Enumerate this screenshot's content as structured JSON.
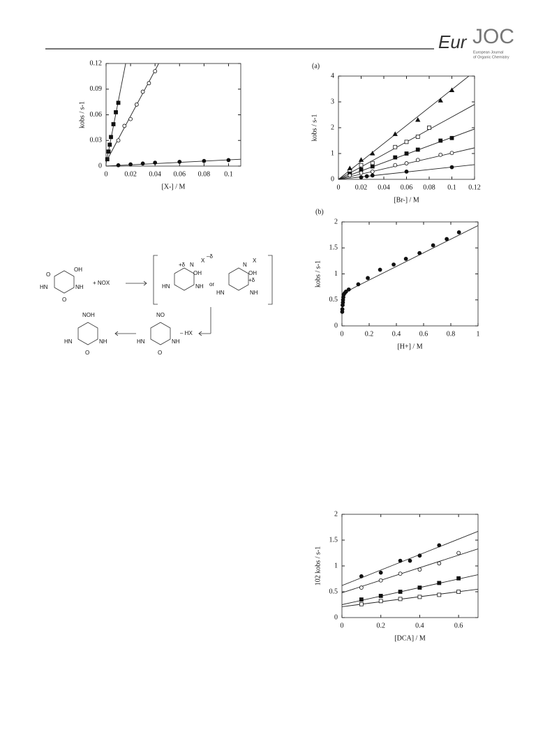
{
  "header": {
    "logo_a": "Eur",
    "logo_b": "JOC",
    "logo_lines": [
      "European Journal",
      "of Organic Chemistry"
    ]
  },
  "scheme": {
    "plus_nox": "+   NOX",
    "or": "or",
    "minus_hx": "– HX",
    "oh": "OH",
    "o": "O",
    "nh": "NH",
    "hn": "HN",
    "no": "NO",
    "noh": "NOH",
    "x_delta": "X",
    "delta_minus": "–δ",
    "delta_plus": "+δ",
    "n": "N"
  },
  "chart_data": [
    {
      "type": "scatter",
      "xlabel": "[X-] / M",
      "ylabel": "kobs / s-1",
      "xlim": [
        0,
        0.11
      ],
      "ylim": [
        0,
        0.12
      ],
      "xticks": [
        0,
        0.02,
        0.04,
        0.06,
        0.08,
        0.1
      ],
      "yticks": [
        0,
        0.03,
        0.06,
        0.09,
        0.12
      ],
      "series": [
        {
          "marker": "square",
          "filled": true,
          "x": [
            0.001,
            0.002,
            0.003,
            0.004,
            0.006,
            0.008,
            0.01
          ],
          "values": [
            0.008,
            0.017,
            0.025,
            0.034,
            0.049,
            0.063,
            0.074
          ],
          "fit_x": [
            0,
            0.016
          ],
          "fit_y": [
            0.003,
            0.12
          ]
        },
        {
          "marker": "circle",
          "filled": false,
          "x": [
            0.01,
            0.015,
            0.02,
            0.025,
            0.03,
            0.035,
            0.04
          ],
          "values": [
            0.03,
            0.047,
            0.055,
            0.072,
            0.087,
            0.097,
            0.111
          ],
          "fit_x": [
            0,
            0.043
          ],
          "fit_y": [
            0.005,
            0.12
          ]
        },
        {
          "marker": "circle",
          "filled": true,
          "x": [
            0.01,
            0.02,
            0.03,
            0.04,
            0.06,
            0.08,
            0.1
          ],
          "values": [
            0.001,
            0.002,
            0.003,
            0.004,
            0.005,
            0.006,
            0.007
          ],
          "fit_x": [
            0,
            0.11
          ],
          "fit_y": [
            0,
            0.008
          ]
        }
      ]
    },
    {
      "type": "scatter",
      "panel_label": "(a)",
      "xlabel": "[Br-] / M",
      "ylabel": "kobs / s-1",
      "xlim": [
        0,
        0.12
      ],
      "ylim": [
        0,
        4
      ],
      "xticks": [
        0,
        0.02,
        0.04,
        0.06,
        0.08,
        0.1,
        0.12
      ],
      "yticks": [
        0,
        1,
        2,
        3,
        4
      ],
      "series": [
        {
          "marker": "triangle",
          "filled": true,
          "x": [
            0.01,
            0.02,
            0.03,
            0.05,
            0.07,
            0.09,
            0.1
          ],
          "values": [
            0.42,
            0.75,
            1.0,
            1.75,
            2.3,
            3.05,
            3.45
          ],
          "fit_x": [
            0,
            0.115
          ],
          "fit_y": [
            0,
            4
          ]
        },
        {
          "marker": "square",
          "filled": false,
          "x": [
            0.01,
            0.02,
            0.03,
            0.05,
            0.06,
            0.07,
            0.08
          ],
          "values": [
            0.3,
            0.55,
            0.63,
            1.25,
            1.45,
            1.65,
            2.0
          ],
          "fit_x": [
            0,
            0.12
          ],
          "fit_y": [
            0,
            2.9
          ]
        },
        {
          "marker": "square",
          "filled": true,
          "x": [
            0.01,
            0.02,
            0.03,
            0.05,
            0.06,
            0.07,
            0.09,
            0.1
          ],
          "values": [
            0.22,
            0.38,
            0.5,
            0.85,
            1.0,
            1.15,
            1.5,
            1.6
          ],
          "fit_x": [
            0,
            0.12
          ],
          "fit_y": [
            0,
            1.95
          ]
        },
        {
          "marker": "circle",
          "filled": false,
          "x": [
            0.01,
            0.02,
            0.03,
            0.05,
            0.06,
            0.07,
            0.09,
            0.1
          ],
          "values": [
            0.15,
            0.25,
            0.3,
            0.55,
            0.62,
            0.75,
            0.95,
            1.02
          ],
          "fit_x": [
            0,
            0.12
          ],
          "fit_y": [
            0,
            1.22
          ]
        },
        {
          "marker": "circle",
          "filled": true,
          "x": [
            0.02,
            0.025,
            0.03,
            0.06,
            0.1
          ],
          "values": [
            0.08,
            0.12,
            0.15,
            0.3,
            0.47
          ],
          "fit_x": [
            0,
            0.12
          ],
          "fit_y": [
            0,
            0.57
          ]
        }
      ]
    },
    {
      "type": "scatter",
      "panel_label": "(b)",
      "xlabel": "[H+] / M",
      "ylabel": "kobs / s-1",
      "xlim": [
        0,
        1
      ],
      "ylim": [
        0,
        2
      ],
      "xticks": [
        0,
        0.2,
        0.4,
        0.6,
        0.8,
        1
      ],
      "yticks": [
        0,
        0.5,
        1,
        1.5,
        2
      ],
      "series": [
        {
          "marker": "circle",
          "filled": true,
          "x": [
            0.002,
            0.003,
            0.005,
            0.007,
            0.008,
            0.01,
            0.012,
            0.02,
            0.03,
            0.05,
            0.12,
            0.19,
            0.28,
            0.38,
            0.47,
            0.57,
            0.67,
            0.77,
            0.86
          ],
          "values": [
            0.27,
            0.32,
            0.4,
            0.45,
            0.5,
            0.55,
            0.6,
            0.63,
            0.66,
            0.7,
            0.8,
            0.92,
            1.08,
            1.18,
            1.29,
            1.4,
            1.55,
            1.67,
            1.8
          ],
          "fit_x": [
            0,
            0.005,
            0.01,
            0.02,
            0.05,
            0.1,
            1
          ],
          "fit_y": [
            0.25,
            0.45,
            0.57,
            0.63,
            0.68,
            0.75,
            1.93
          ]
        }
      ]
    },
    {
      "type": "scatter",
      "xlabel": "[DCA] / M",
      "ylabel": "102 kobs / s-1",
      "xlim": [
        0,
        0.7
      ],
      "ylim": [
        0,
        2
      ],
      "xticks": [
        0,
        0.2,
        0.4,
        0.6
      ],
      "yticks": [
        0,
        0.5,
        1,
        1.5,
        2
      ],
      "series": [
        {
          "marker": "circle",
          "filled": true,
          "x": [
            0.1,
            0.2,
            0.3,
            0.35,
            0.4,
            0.5
          ],
          "values": [
            0.8,
            0.87,
            1.1,
            1.1,
            1.2,
            1.4
          ],
          "fit_x": [
            0,
            0.7
          ],
          "fit_y": [
            0.62,
            1.67
          ]
        },
        {
          "marker": "circle",
          "filled": false,
          "x": [
            0.1,
            0.2,
            0.3,
            0.4,
            0.5,
            0.6
          ],
          "values": [
            0.58,
            0.72,
            0.85,
            0.93,
            1.05,
            1.25
          ],
          "fit_x": [
            0,
            0.7
          ],
          "fit_y": [
            0.48,
            1.33
          ]
        },
        {
          "marker": "square",
          "filled": true,
          "x": [
            0.1,
            0.2,
            0.3,
            0.4,
            0.5,
            0.6
          ],
          "values": [
            0.35,
            0.42,
            0.5,
            0.58,
            0.67,
            0.76
          ],
          "fit_x": [
            0,
            0.7
          ],
          "fit_y": [
            0.25,
            0.83
          ]
        },
        {
          "marker": "square",
          "filled": false,
          "x": [
            0.1,
            0.2,
            0.3,
            0.4,
            0.5,
            0.6
          ],
          "values": [
            0.26,
            0.32,
            0.36,
            0.4,
            0.44,
            0.5
          ],
          "fit_x": [
            0,
            0.7
          ],
          "fit_y": [
            0.21,
            0.55
          ]
        }
      ]
    }
  ]
}
